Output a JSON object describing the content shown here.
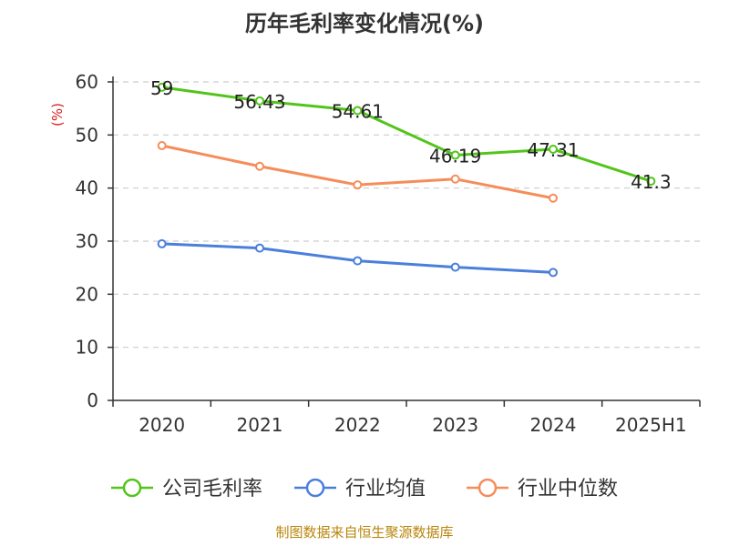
{
  "chart_data": {
    "type": "line",
    "title": "历年毛利率变化情况(%)",
    "ylabel": "(%)",
    "xlabel": "",
    "categories": [
      "2020",
      "2021",
      "2022",
      "2023",
      "2024",
      "2025H1"
    ],
    "ylim": [
      0,
      60
    ],
    "yticks": [
      0,
      10,
      20,
      30,
      40,
      50,
      60
    ],
    "grid": "horizontal-dashed",
    "legend_position": "bottom",
    "series": [
      {
        "name": "公司毛利率",
        "color": "#52c41a",
        "values": [
          59,
          56.43,
          54.61,
          46.19,
          47.31,
          41.3
        ],
        "show_labels": true
      },
      {
        "name": "行业均值",
        "color": "#4a7fdc",
        "values": [
          29.5,
          28.7,
          26.3,
          25.1,
          24.1,
          null
        ],
        "show_labels": false
      },
      {
        "name": "行业中位数",
        "color": "#f58d5a",
        "values": [
          48,
          44.1,
          40.6,
          41.7,
          38.1,
          null
        ],
        "show_labels": false
      }
    ]
  },
  "source": "制图数据来自恒生聚源数据库"
}
